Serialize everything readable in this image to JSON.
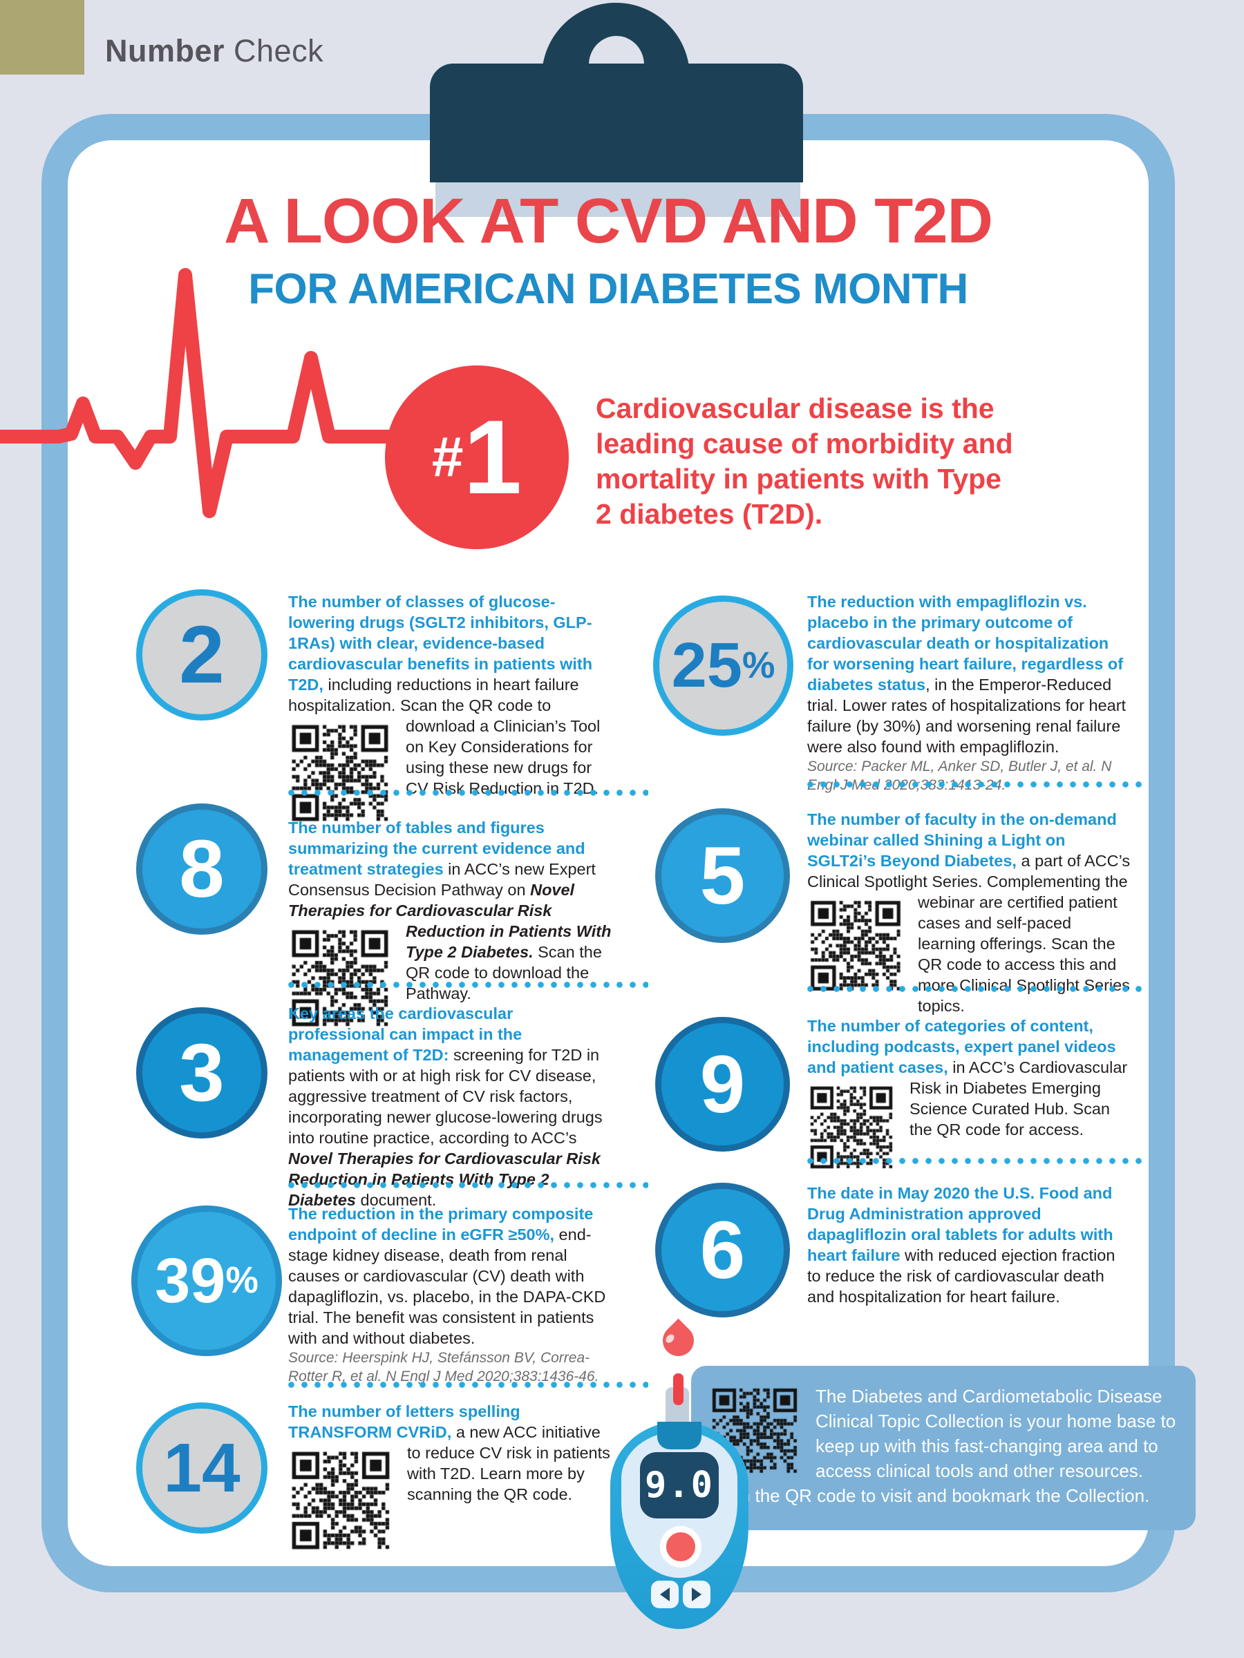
{
  "brand": {
    "bold": "Number",
    "regular": " Check"
  },
  "title": {
    "line1": "A LOOK AT CVD AND T2D",
    "line2": "FOR AMERICAN DIABETES MONTH"
  },
  "hero": {
    "rank_hash": "#",
    "rank_num": "1",
    "text": "Cardiovascular disease is the leading cause of morbidity and mortality in patients with Type 2 diabetes (T2D)."
  },
  "columns": {
    "left": [
      {
        "number": "2",
        "suffix": "",
        "circle_style": "background:#d2d4d6;border:9px solid #29abe2;color:#1d7fc1;",
        "lead": "The number of classes of glucose-lowering drugs (SGLT2 inhibitors, GLP-1RAs) with clear, evidence-based cardiovascular benefits in patients with T2D,",
        "n1": " including reductions in heart failure hospitalization. Scan the QR code to",
        "i1": "",
        "i2": "",
        "n2": " download a Clinician’s Tool on Key Considerations for using these new drugs for CV Risk Reduction in T2D.",
        "source": ""
      },
      {
        "number": "8",
        "suffix": "",
        "circle_style": "background:#29a2de;border:9px solid #2b80b2;color:#ffffff;",
        "lead": "The number of tables and figures summarizing the current evidence and treatment strategies",
        "n1": " in ACC’s new Expert Consensus Decision Pathway on ",
        "i1": "Novel Therapies for Cardiovascular ",
        "i2": "Risk Reduction in Patients With Type 2 Diabetes. ",
        "n2": "Scan the QR code to download the Pathway.",
        "source": ""
      },
      {
        "number": "3",
        "suffix": "",
        "circle_style": "background:#1593d0;border:9px solid #176ba3;color:#ffffff;",
        "lead": "Key areas the cardiovascular professional can impact in the management of T2D:",
        "n1": " screening for T2D in patients with or at high risk for CV disease, aggressive treatment of CV risk factors, incorporating newer glucose-lowering drugs into routine practice, according to ACC’s ",
        "i1": "Novel Therapies for Cardiovascular Risk Reduction in Patients With Type 2 Diabetes",
        "i2": "",
        "n2": " document.",
        "source": ""
      },
      {
        "number": "39",
        "suffix": "%",
        "circle_style": "background:#31abe2;border:9px solid #2590c9;color:#ffffff;",
        "lead": "The reduction in the primary composite endpoint of decline in eGFR ≥50%,",
        "n1": " end-stage kidney disease, death from renal causes or cardiovascular (CV) death with dapagliflozin, vs. placebo, in the DAPA-CKD trial. The benefit was consistent in patients with and without diabetes.",
        "i1": "",
        "i2": "",
        "n2": "",
        "source": "Source: Heerspink HJ, Stefánsson BV, Correa-Rotter R, et al. N Engl J Med 2020;383:1436-46."
      },
      {
        "number": "14",
        "suffix": "",
        "circle_style": "background:#d2d4d6;border:9px solid #29abe2;color:#1d7fc1;",
        "lead": "The number of letters spelling TRANSFORM CVRiD,",
        "n1": " a new ACC",
        "i1": "",
        "i2": "",
        "n2": " initiative to reduce CV risk in patients with T2D. Learn more by scanning the QR code.",
        "source": ""
      }
    ],
    "right": [
      {
        "number": "25",
        "suffix": "%",
        "circle_style": "background:#d2d4d6;border:9px solid #29abe2;color:#1d7fc1;",
        "lead": "The reduction with empagliflozin vs. placebo in the primary outcome of cardiovascular death or hospitalization for worsening heart failure, regardless of diabetes status",
        "n1": ", in the Emperor-Reduced trial. Lower rates of hospitalizations for heart failure (by 30%) and worsening renal failure were also found with empagliflozin.",
        "i1": "",
        "i2": "",
        "n2": "",
        "source": "Source: Packer ML, Anker SD, Butler J, et al. N Engl J Med 2020;383:1413-24."
      },
      {
        "number": "5",
        "suffix": "",
        "circle_style": "background:#29a2de;border:9px solid #2b80b2;color:#ffffff;",
        "lead": "The number of faculty in the on-demand webinar called Shining a Light on SGLT2i’s Beyond Diabetes,",
        "n1": " a part of ACC’s Clinical Spotlight Series. Complementing the webinar",
        "i1": "",
        "i2": "",
        "n2": " are certified patient cases and self-paced learning offerings. Scan the QR code to access this and more Clinical Spotlight Series topics.",
        "source": ""
      },
      {
        "number": "9",
        "suffix": "",
        "circle_style": "background:#1593d0;border:9px solid #176ba3;color:#ffffff;",
        "lead": "The number of categories of content, including podcasts, expert panel videos and patient cases,",
        "n1": " in ACC’s Cardiovascular",
        "i1": "",
        "i2": "",
        "n2": " Risk in Diabetes Emerging Science Curated Hub. Scan the QR code for access.",
        "source": ""
      },
      {
        "number": "6",
        "suffix": "",
        "circle_style": "background:#1d9cd8;border:9px solid #1d6fa6;color:#ffffff;",
        "lead": "The date in May 2020 the U.S. Food and Drug Administration approved dapagliflozin oral tablets for adults with heart failure",
        "n1": " with reduced ejection fraction to reduce the risk of cardiovascular death and hospitalization for heart failure.",
        "i1": "",
        "i2": "",
        "n2": "",
        "source": ""
      }
    ]
  },
  "footer": {
    "text": "The Diabetes and Cardiometabolic Disease Clinical Topic Collection is your home base to keep up with this fast-changing area and to access clinical tools and other resources. Scan the QR code to visit and bookmark the Collection."
  },
  "meter": {
    "reading": "9.0"
  },
  "colors": {
    "page_bg": "#dfe2eb",
    "olive": "#aca673",
    "card_border": "#85b8dd",
    "clip_navy": "#1c4157",
    "title_red": "#e9454b",
    "title_blue": "#1e8dc9",
    "lead_blue": "#1b97d5",
    "accent_dot_blue": "#29abe2",
    "ekg_red": "#ee4247",
    "gray_circle": "#d2d4d6",
    "footer_panel": "#7db1d8",
    "meter_teal": "#29a7da",
    "meter_display_navy": "#1d4a68",
    "meter_button_red": "#f2605f"
  }
}
